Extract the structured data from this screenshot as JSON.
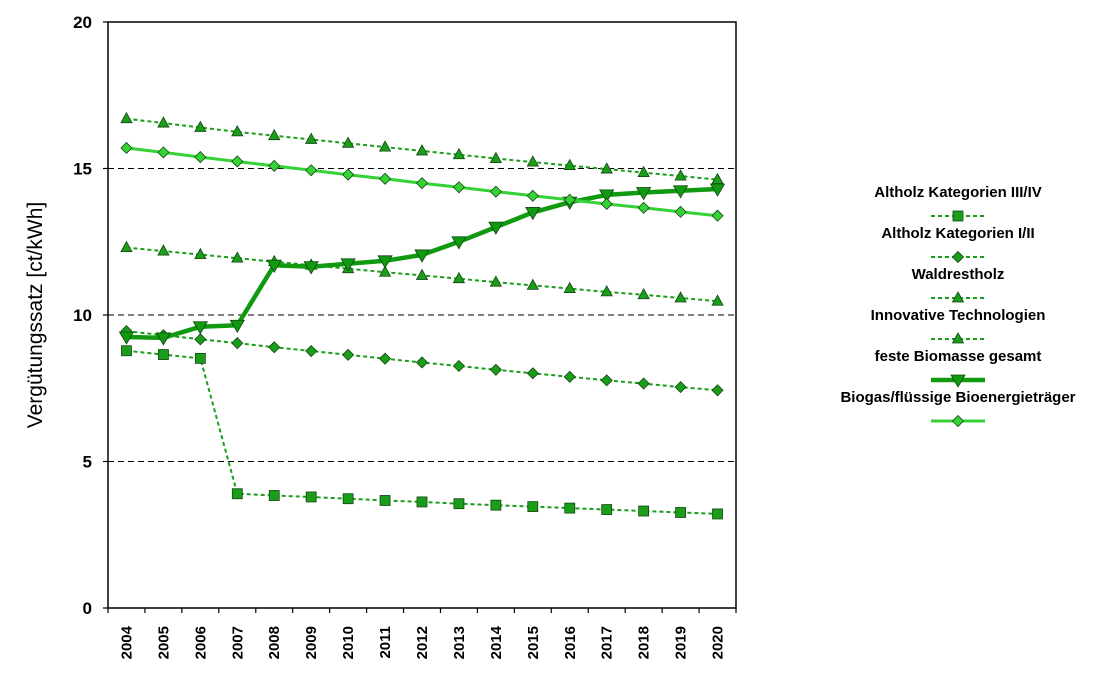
{
  "chart_data": {
    "type": "line",
    "title": "",
    "xlabel": "",
    "ylabel": "Vergütungssatz [ct/kWh]",
    "ylim": [
      0,
      20
    ],
    "yticks": [
      0,
      5,
      10,
      15,
      20
    ],
    "grid": "horizontal dashed at 5, 10, 15",
    "legend_position": "right",
    "categories": [
      "2004",
      "2005",
      "2006",
      "2007",
      "2008",
      "2009",
      "2010",
      "2011",
      "2012",
      "2013",
      "2014",
      "2015",
      "2016",
      "2017",
      "2018",
      "2019",
      "2020"
    ],
    "series": [
      {
        "name": "Altholz Kategorien III/IV",
        "style": "dotted",
        "marker": "square",
        "color": "#1a9e1a",
        "values": [
          8.78,
          8.65,
          8.52,
          3.9,
          3.84,
          3.79,
          3.73,
          3.67,
          3.62,
          3.56,
          3.51,
          3.46,
          3.41,
          3.36,
          3.31,
          3.26,
          3.21
        ]
      },
      {
        "name": "Altholz Kategorien I/II",
        "style": "dotted",
        "marker": "diamond",
        "color": "#1a9e1a",
        "values": [
          9.45,
          9.31,
          9.17,
          9.04,
          8.9,
          8.77,
          8.64,
          8.51,
          8.38,
          8.26,
          8.13,
          8.01,
          7.89,
          7.77,
          7.66,
          7.54,
          7.43
        ]
      },
      {
        "name": "Waldrestholz",
        "style": "dotted",
        "marker": "triangle-up",
        "color": "#1a9e1a",
        "values": [
          12.3,
          12.18,
          12.06,
          11.94,
          11.82,
          11.7,
          11.58,
          11.46,
          11.35,
          11.24,
          11.12,
          11.01,
          10.9,
          10.79,
          10.69,
          10.58,
          10.47
        ]
      },
      {
        "name": "Innovative Technologien",
        "style": "dotted",
        "marker": "triangle-up",
        "color": "#1a9e1a",
        "values": [
          16.7,
          16.55,
          16.4,
          16.25,
          16.12,
          15.99,
          15.86,
          15.73,
          15.6,
          15.47,
          15.34,
          15.22,
          15.1,
          14.98,
          14.86,
          14.74,
          14.62
        ]
      },
      {
        "name": "feste Biomasse gesamt",
        "style": "solid-thick",
        "marker": "triangle-down",
        "color": "#0f9a0f",
        "values": [
          9.25,
          9.22,
          9.6,
          9.65,
          11.7,
          11.65,
          11.75,
          11.85,
          12.05,
          12.5,
          13.0,
          13.5,
          13.85,
          14.1,
          14.18,
          14.24,
          14.3
        ]
      },
      {
        "name": "Biogas/flüssige Bioenergieträger",
        "style": "solid",
        "marker": "diamond",
        "color": "#35d235",
        "values": [
          15.7,
          15.55,
          15.39,
          15.24,
          15.09,
          14.94,
          14.79,
          14.65,
          14.5,
          14.36,
          14.21,
          14.07,
          13.93,
          13.79,
          13.66,
          13.52,
          13.39
        ]
      }
    ]
  }
}
